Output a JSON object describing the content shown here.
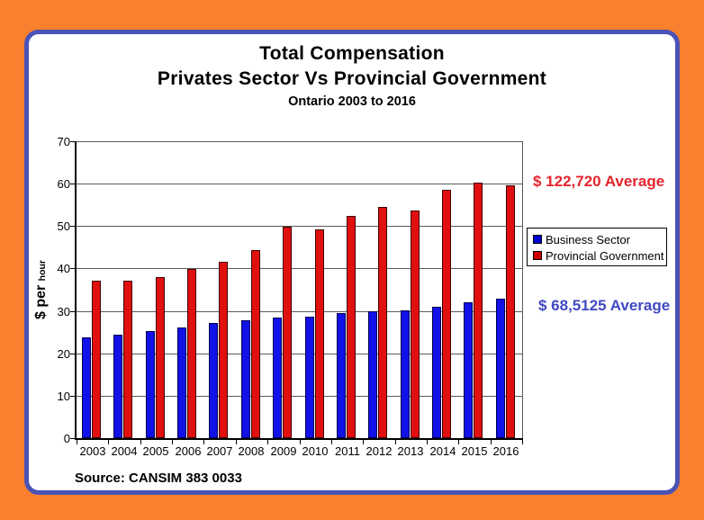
{
  "title": {
    "line1": "Total Compensation",
    "line2": "Privates Sector Vs Provincial Government",
    "line3": "Ontario 2003 to 2016"
  },
  "y_axis_label": {
    "main": "$ per",
    "sub": "hour"
  },
  "source": "Source: CANSIM 383 0033",
  "annotations": {
    "provincial_average": {
      "text": "$ 122,720 Average",
      "color": "#e3242c"
    },
    "business_average": {
      "text": "$ 68,5125 Average",
      "color": "#4149c1"
    }
  },
  "legend": {
    "items": [
      {
        "label": "Business Sector",
        "color": "#0000d0"
      },
      {
        "label": "Provincial Government",
        "color": "#d00000"
      }
    ]
  },
  "colors": {
    "background_frame": "#f8802e",
    "panel_border": "#4a52b5",
    "gridline": "#5a5a5a",
    "axis": "#000000"
  },
  "chart_data": {
    "type": "bar",
    "title": "Total Compensation - Privates Sector Vs Provincial Government - Ontario 2003 to 2016",
    "xlabel": "",
    "ylabel": "$ per hour",
    "ylim": [
      0,
      70
    ],
    "ytick_step": 10,
    "grid": true,
    "legend_position": "right",
    "categories": [
      "2003",
      "2004",
      "2005",
      "2006",
      "2007",
      "2008",
      "2009",
      "2010",
      "2011",
      "2012",
      "2013",
      "2014",
      "2015",
      "2016"
    ],
    "series": [
      {
        "name": "Business Sector",
        "color": "#1111e8",
        "border": "#000050",
        "values": [
          23.7,
          24.3,
          25.3,
          26.1,
          27.1,
          27.8,
          28.4,
          28.7,
          29.4,
          29.9,
          30.1,
          31.0,
          32.0,
          32.9
        ]
      },
      {
        "name": "Provincial Government",
        "color": "#e01010",
        "border": "#400000",
        "values": [
          37.2,
          37.2,
          37.9,
          39.9,
          41.6,
          44.3,
          49.8,
          49.2,
          52.3,
          54.6,
          53.7,
          58.5,
          60.2,
          59.5
        ]
      }
    ]
  }
}
